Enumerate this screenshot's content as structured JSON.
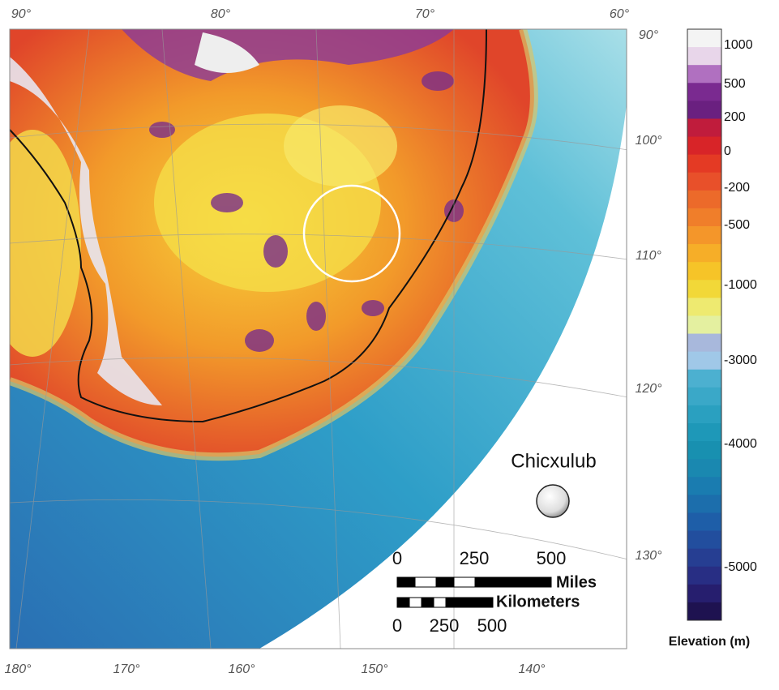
{
  "map": {
    "top_labels": [
      "90°",
      "80°",
      "70°",
      "60°"
    ],
    "right_labels": [
      "90°",
      "100°",
      "110°",
      "120°",
      "130°"
    ],
    "bottom_labels": [
      "180°",
      "170°",
      "160°",
      "150°",
      "140°"
    ],
    "legend": {
      "title": "Elevation (m)",
      "labels": [
        "1000",
        "500",
        "200",
        "0",
        "-200",
        "-500",
        "-1000",
        "-3000",
        "-4000",
        "-5000"
      ]
    },
    "site_label": "Chicxulub",
    "scale": {
      "miles_labels": [
        "0",
        "250",
        "500"
      ],
      "miles_unit": "Miles",
      "km_unit": "Kilometers",
      "km_labels": [
        "0",
        "250",
        "500"
      ]
    }
  }
}
